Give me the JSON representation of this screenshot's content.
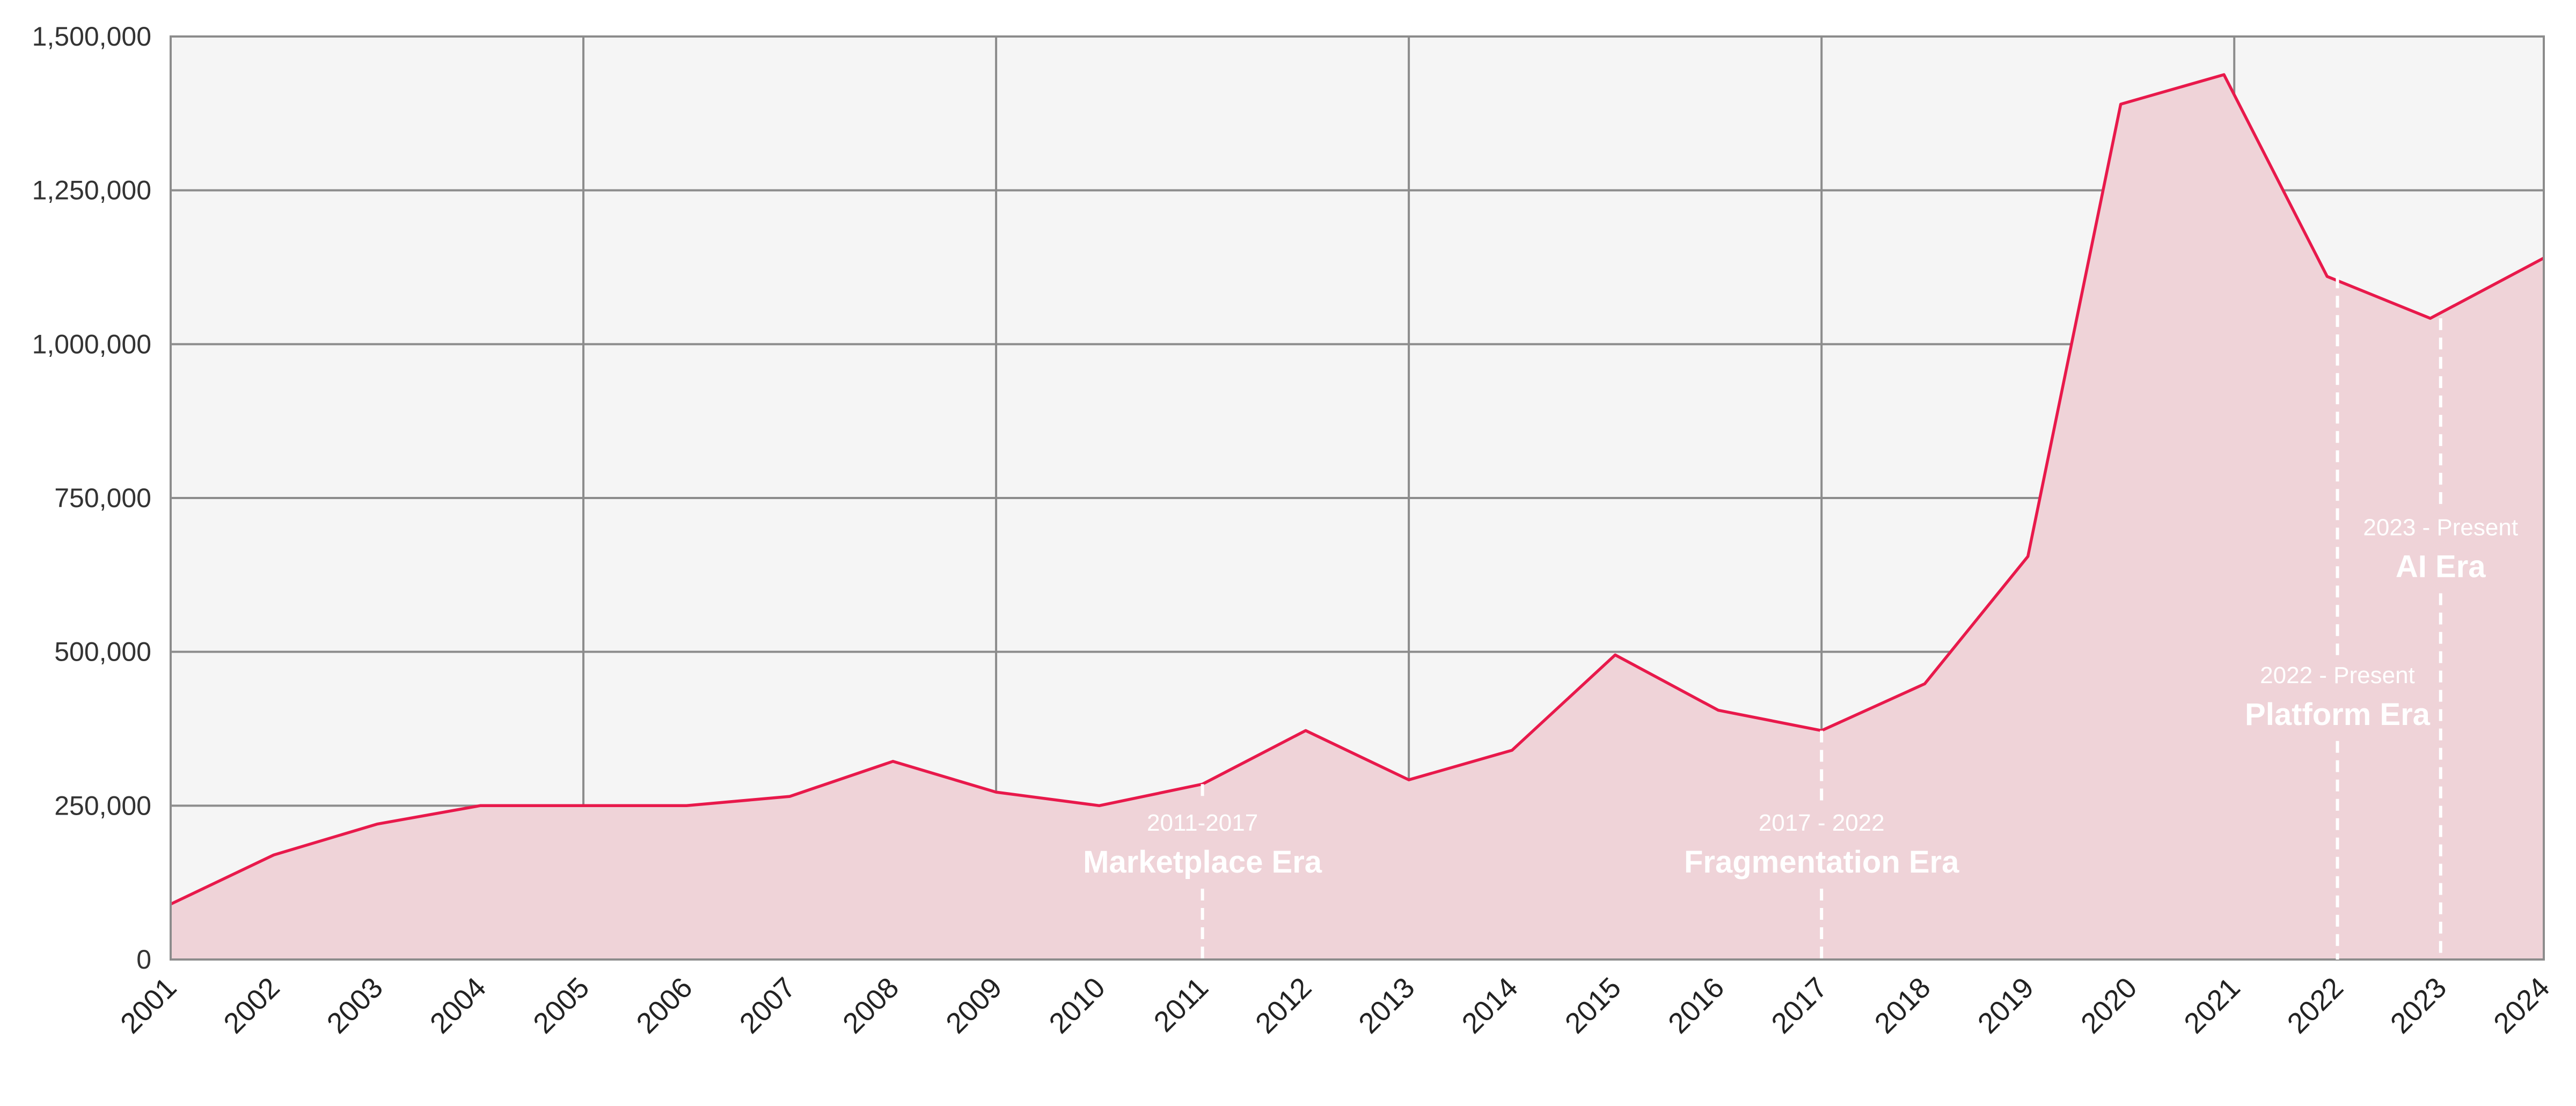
{
  "colors": {
    "line": "#e8194b",
    "area": "#efd3d8",
    "plot_background": "#f5f5f5",
    "grid": "#8c8c8c",
    "annotation": "#ffffff"
  },
  "chart_data": {
    "type": "area",
    "title": "",
    "xlabel": "",
    "ylabel": "",
    "x": [
      2001,
      2002,
      2003,
      2004,
      2005,
      2006,
      2007,
      2008,
      2009,
      2010,
      2011,
      2012,
      2013,
      2014,
      2015,
      2016,
      2017,
      2018,
      2019,
      2020,
      2021,
      2022,
      2023,
      2024
    ],
    "x_tick_labels": [
      "2001",
      "2002",
      "2003",
      "2004",
      "2005",
      "2006",
      "2007",
      "2008",
      "2009",
      "2010",
      "2011",
      "2012",
      "2013",
      "2014",
      "2015",
      "2016",
      "2017",
      "2018",
      "2019",
      "2020",
      "2021",
      "2022",
      "2023",
      "2024"
    ],
    "x_range": [
      2001,
      2024
    ],
    "ylim": [
      0,
      1500000
    ],
    "y_ticks": [
      0,
      250000,
      500000,
      750000,
      1000000,
      1250000,
      1500000
    ],
    "y_tick_labels": [
      "0",
      "250,000",
      "500,000",
      "750,000",
      "1,000,000",
      "1,250,000",
      "1,500,000"
    ],
    "grid": true,
    "grid_vertical_x": [
      2005,
      2009,
      2013,
      2017,
      2021
    ],
    "series": [
      {
        "points": [
          [
            2001,
            90000
          ],
          [
            2002,
            170000
          ],
          [
            2003,
            220000
          ],
          [
            2004,
            250000
          ],
          [
            2005,
            250000
          ],
          [
            2006,
            250000
          ],
          [
            2007,
            265000
          ],
          [
            2008,
            322000
          ],
          [
            2009,
            272000
          ],
          [
            2010,
            250000
          ],
          [
            2011,
            285000
          ],
          [
            2012,
            372000
          ],
          [
            2013,
            292000
          ],
          [
            2014,
            340000
          ],
          [
            2015,
            495000
          ],
          [
            2016,
            405000
          ],
          [
            2017,
            372000
          ],
          [
            2018,
            448000
          ],
          [
            2019,
            655000
          ],
          [
            2019.9,
            1390000
          ],
          [
            2020.9,
            1438000
          ],
          [
            2021.9,
            1110000
          ],
          [
            2022.9,
            1042000
          ],
          [
            2024,
            1140000
          ]
        ]
      }
    ],
    "annotations": [
      {
        "x": 2011,
        "range": "2011-2017",
        "name": "Marketplace Era",
        "line_to_y": 285000,
        "text_y": 150000
      },
      {
        "x": 2017,
        "range": "2017 - 2022",
        "name": "Fragmentation Era",
        "line_to_y": 372000,
        "text_y": 150000
      },
      {
        "x": 2022,
        "range": "2022 - Present",
        "name": "Platform Era",
        "line_to_y": 1110000,
        "text_y": 390000
      },
      {
        "x": 2023,
        "range": "2023 - Present",
        "name": "AI Era",
        "line_to_y": 1042000,
        "text_y": 630000
      }
    ]
  }
}
